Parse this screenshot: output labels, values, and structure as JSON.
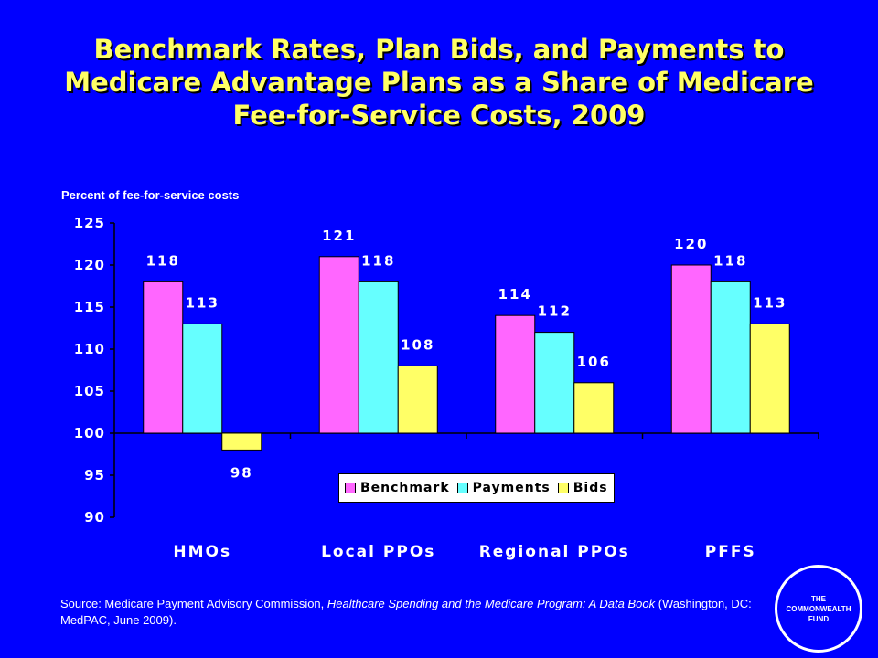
{
  "title": "Benchmark Rates, Plan Bids, and Payments to Medicare Advantage Plans as a Share of Medicare Fee-for-Service Costs, 2009",
  "chart_data": {
    "type": "bar",
    "ylabel": "Percent of fee-for-service costs",
    "ylim": [
      90,
      125
    ],
    "yticks": [
      125,
      120,
      115,
      110,
      105,
      100,
      95,
      90
    ],
    "baseline": 100,
    "categories": [
      "HMOs",
      "Local PPOs",
      "Regional PPOs",
      "PFFS"
    ],
    "series": [
      {
        "name": "Benchmark",
        "color": "#ff66ff",
        "values": [
          118,
          121,
          114,
          120
        ]
      },
      {
        "name": "Payments",
        "color": "#66ffff",
        "values": [
          113,
          118,
          112,
          118
        ]
      },
      {
        "name": "Bids",
        "color": "#ffff66",
        "values": [
          98,
          108,
          106,
          113
        ]
      }
    ],
    "legend_position": "bottom-center",
    "grid": false
  },
  "source": {
    "prefix": "Source: Medicare Payment Advisory Commission, ",
    "italic": "Healthcare Spending and the Medicare Program: A Data Book",
    "suffix": " (Washington, DC: MedPAC, June 2009)."
  },
  "logo": {
    "text": "THE\nCOMMONWEALTH\nFUND"
  },
  "colors": {
    "background": "#0000ff",
    "title": "#ffff66"
  }
}
